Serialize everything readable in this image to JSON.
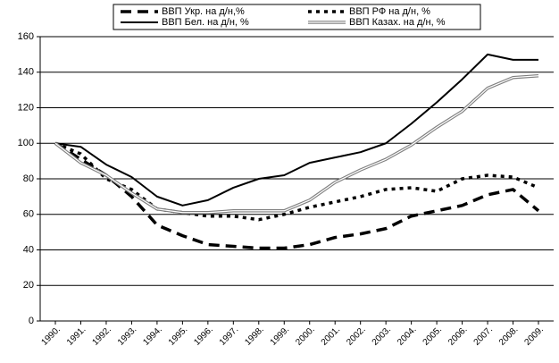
{
  "chart_data": {
    "type": "line",
    "categories": [
      "1990.",
      "1991.",
      "1992.",
      "1993.",
      "1994.",
      "1995.",
      "1996.",
      "1997.",
      "1998.",
      "1999.",
      "2000.",
      "2001.",
      "2002.",
      "2003.",
      "2004.",
      "2005.",
      "2006.",
      "2007.",
      "2008.",
      "2009."
    ],
    "series": [
      {
        "name": "ВВП Укр. на д/н,%",
        "color": "#000000",
        "style": "dash",
        "values": [
          100,
          91,
          82,
          70,
          54,
          48,
          43,
          42,
          41,
          41,
          43,
          47,
          49,
          52,
          59,
          62,
          65,
          71,
          74,
          62
        ]
      },
      {
        "name": "ВВП РФ на д/н, %",
        "color": "#000000",
        "style": "dot",
        "values": [
          100,
          94,
          80,
          74,
          63,
          61,
          59,
          59,
          57,
          60,
          64,
          67,
          70,
          74,
          75,
          73,
          80,
          82,
          81,
          75
        ]
      },
      {
        "name": "ВВП Бел. на д/н, %",
        "color": "#000000",
        "style": "solid",
        "values": [
          100,
          98,
          88,
          81,
          70,
          65,
          68,
          75,
          80,
          82,
          89,
          92,
          95,
          100,
          111,
          123,
          136,
          150,
          147,
          147
        ]
      },
      {
        "name": "ВВП Казах. на д/н, %",
        "color": "#808080",
        "style": "double",
        "values": [
          100,
          89,
          82,
          72,
          63,
          61,
          61,
          62,
          62,
          62,
          68,
          78,
          85,
          91,
          99,
          109,
          118,
          131,
          137,
          138
        ]
      }
    ],
    "ylim": [
      0,
      160
    ],
    "yticks": [
      0,
      20,
      40,
      60,
      80,
      100,
      120,
      140,
      160
    ],
    "grid": true,
    "legend": "top"
  }
}
